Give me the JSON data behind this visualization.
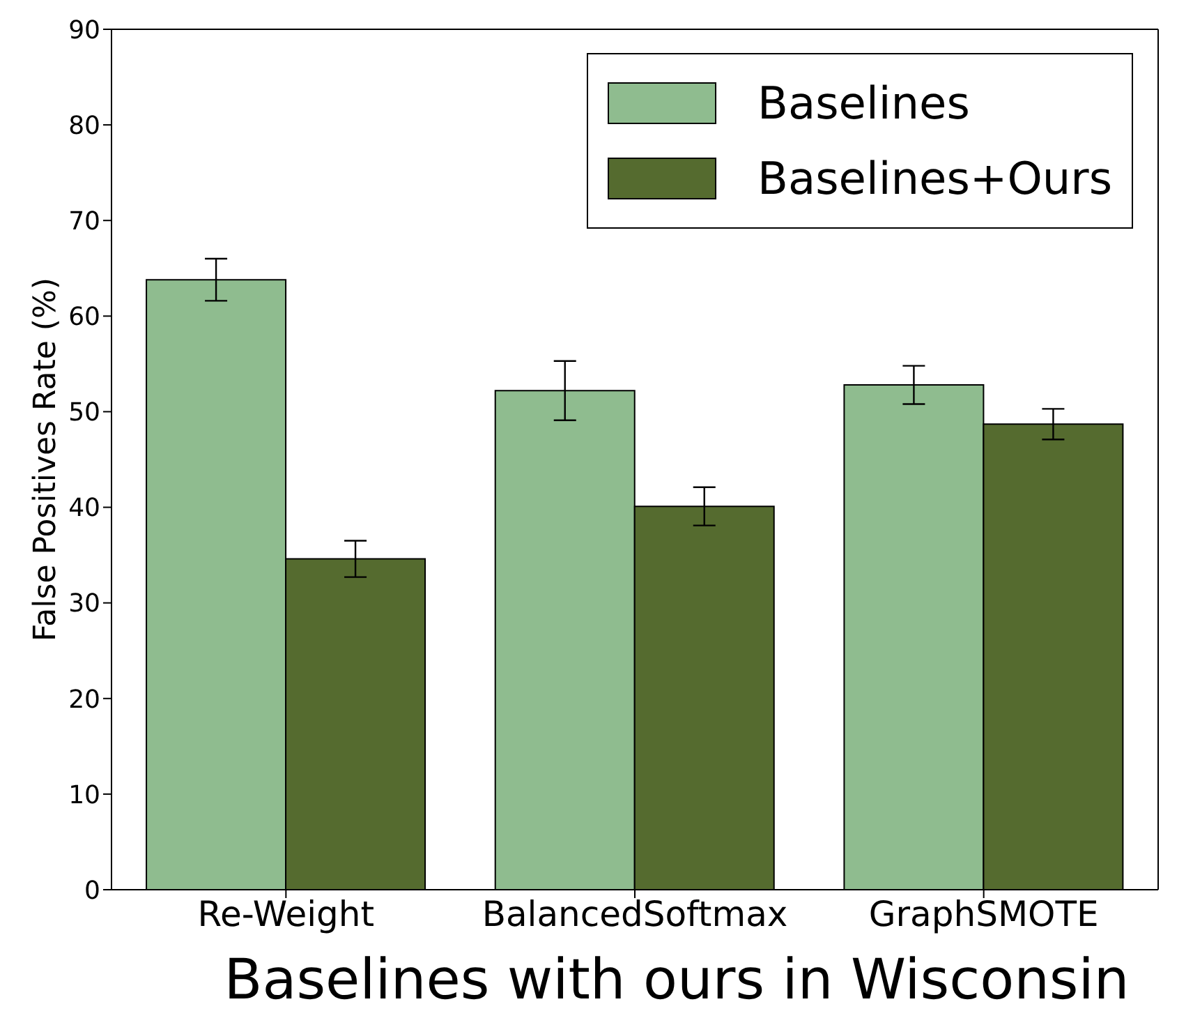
{
  "chart_data": {
    "type": "bar",
    "xlabel": "Baselines with ours in Wisconsin",
    "ylabel": "False Positives Rate (%)",
    "categories": [
      "Re-Weight",
      "BalancedSoftmax",
      "GraphSMOTE"
    ],
    "series": [
      {
        "name": "Baselines",
        "color": "#8fbc8f",
        "values": [
          63.8,
          52.2,
          52.8
        ],
        "errors": [
          2.2,
          3.1,
          2.0
        ]
      },
      {
        "name": "Baselines+Ours",
        "color": "#556b2f",
        "values": [
          34.6,
          40.1,
          48.7
        ],
        "errors": [
          1.9,
          2.0,
          1.6
        ]
      }
    ],
    "ylim": [
      0,
      90
    ],
    "yticks": [
      0,
      10,
      20,
      30,
      40,
      50,
      60,
      70,
      80,
      90
    ],
    "grid": false,
    "legend": "top right"
  }
}
